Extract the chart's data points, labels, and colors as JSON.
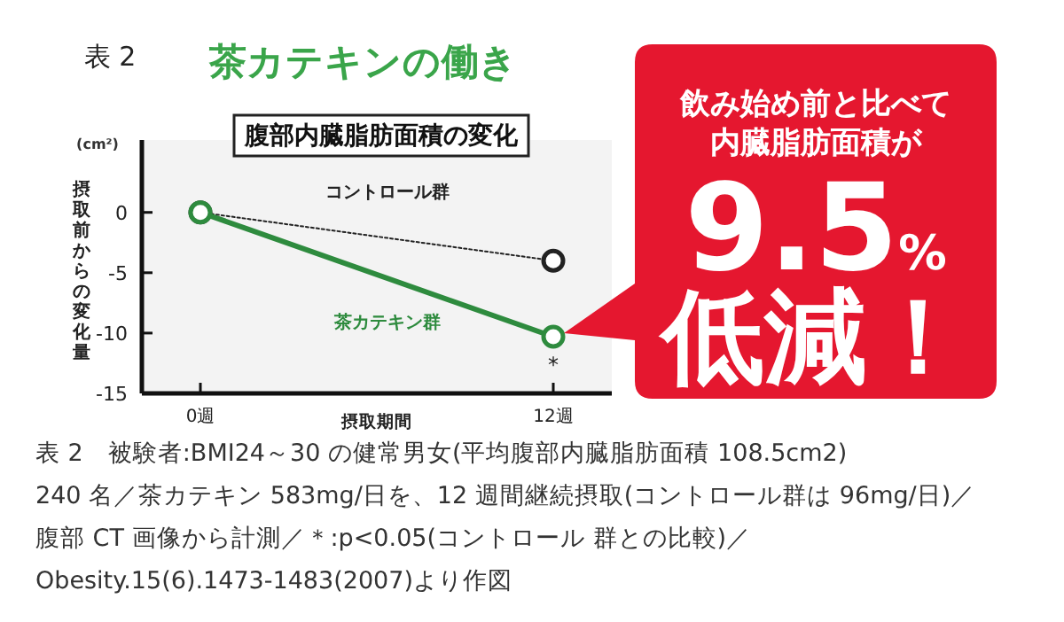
{
  "chart_data": {
    "type": "line",
    "title": "茶カテキンの働き",
    "subtitle": "腹部内臓脂肪面積の変化",
    "xlabel": "摂取期間",
    "ylabel": "摂取前からの変化量",
    "categories": [
      "0週",
      "12週"
    ],
    "series": [
      {
        "name": "コントロール群",
        "color": "#222222",
        "values": [
          0,
          -4
        ],
        "line_style": "dotted"
      },
      {
        "name": "茶カテキン群",
        "color": "#2e8b3e",
        "values": [
          0,
          -10.3
        ],
        "line_style": "solid"
      }
    ],
    "ylim": [
      -15,
      6
    ],
    "yticks": [
      0,
      -5,
      -10,
      -15
    ],
    "marker": "circle",
    "grid": false,
    "annotations": [
      "表 2",
      "(cm²)",
      {
        "text": "*",
        "x": "12週",
        "y": -10.3
      },
      "飲み始め前と比べて",
      "内臓脂肪面積が",
      "9.5%",
      "低減！",
      "表 2　被験者:BMI24～30 の健常男女(平均腹部内臓脂肪面積 108.5cm2)",
      "240 名／茶カテキン 583mg/日を、12 週間継続摂取(コントロール群は 96mg/日)／",
      "腹部 CT 画像から計測／＊:p<0.05(コントロール 群との比較)／",
      "Obesity.15(6).1473-1483(2007)より作図"
    ]
  }
}
